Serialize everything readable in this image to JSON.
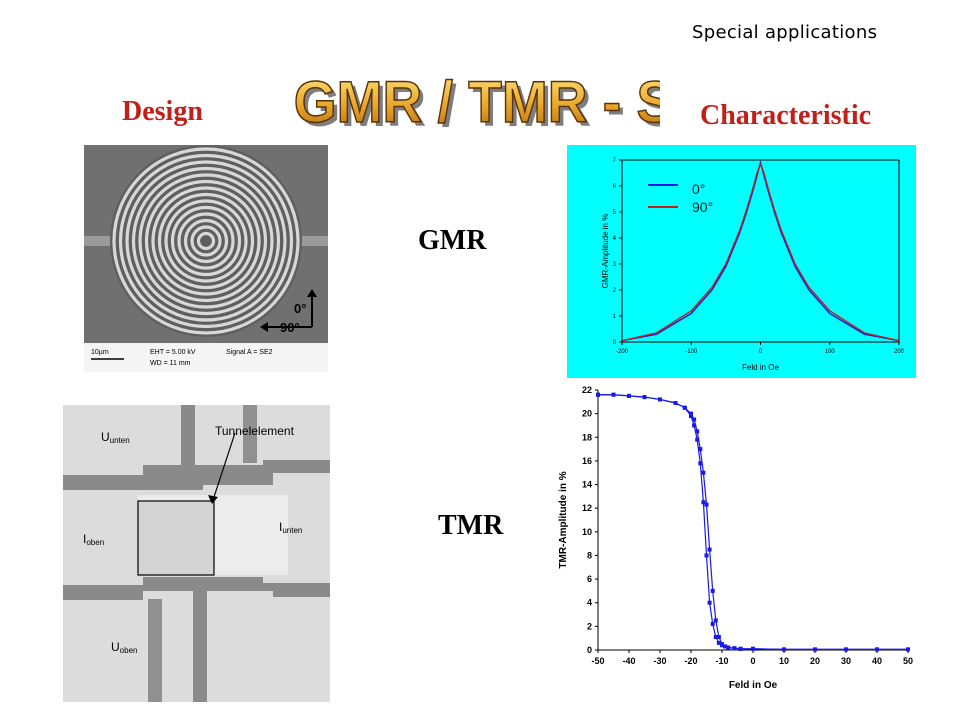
{
  "header": {
    "label": "Special applications"
  },
  "title": {
    "text": "GMR / TMR - Sensors"
  },
  "sections": {
    "design": "Design",
    "characteristic": "Characteristic"
  },
  "rows": {
    "gmr": "GMR",
    "tmr": "TMR"
  },
  "sem_spiral": {
    "angle_0": "0°",
    "angle_90": "90°",
    "scale_bar": "10µm",
    "eht": "EHT = 5.00 kV",
    "wd": "WD = 11 mm",
    "signal": "Signal A = SE2"
  },
  "sem_tunnel": {
    "u_unten_main": "U",
    "u_unten_sub": "unten",
    "tunnel": "Tunnelelement",
    "i_oben_main": "I",
    "i_oben_sub": "oben",
    "i_unten_main": "I",
    "i_unten_sub": "unten",
    "u_oben_main": "U",
    "u_oben_sub": "oben"
  },
  "chart_data": [
    {
      "type": "line",
      "xlabel": "Feld in Oe",
      "ylabel": "GMR-Amplitude in %",
      "xlim": [
        -200,
        200
      ],
      "ylim": [
        0,
        7
      ],
      "xticks": [
        "-200",
        "-100",
        "0",
        "100",
        "200"
      ],
      "yticks": [
        "0",
        "1",
        "2",
        "3",
        "4",
        "5",
        "6",
        "7"
      ],
      "grid": false,
      "legend": "top-left",
      "background": "#00ffff",
      "series": [
        {
          "name": "0°",
          "color": "#1a1ae6",
          "x": [
            -200,
            -150,
            -100,
            -70,
            -50,
            -30,
            -20,
            -10,
            -5,
            0,
            5,
            10,
            20,
            30,
            50,
            70,
            100,
            150,
            200
          ],
          "values": [
            0.05,
            0.3,
            1.1,
            2.0,
            2.9,
            4.2,
            5.0,
            5.9,
            6.4,
            6.9,
            6.4,
            5.9,
            5.0,
            4.2,
            2.9,
            2.0,
            1.1,
            0.3,
            0.05
          ]
        },
        {
          "name": "90°",
          "color": "#c0201a",
          "x": [
            -200,
            -150,
            -100,
            -70,
            -50,
            -30,
            -20,
            -10,
            -5,
            0,
            5,
            10,
            20,
            30,
            50,
            70,
            100,
            150,
            200
          ],
          "values": [
            0.05,
            0.35,
            1.2,
            2.1,
            3.0,
            4.3,
            5.1,
            6.0,
            6.5,
            6.85,
            6.5,
            6.0,
            5.1,
            4.3,
            3.0,
            2.1,
            1.2,
            0.35,
            0.05
          ]
        }
      ]
    },
    {
      "type": "line",
      "xlabel": "Feld in Oe",
      "ylabel": "TMR-Amplitude in %",
      "xlim": [
        -50,
        50
      ],
      "ylim": [
        0,
        22
      ],
      "xticks": [
        "-50",
        "-40",
        "-30",
        "-20",
        "-10",
        "0",
        "10",
        "20",
        "30",
        "40",
        "50"
      ],
      "yticks": [
        "0",
        "2",
        "4",
        "6",
        "8",
        "10",
        "12",
        "14",
        "16",
        "18",
        "20",
        "22"
      ],
      "grid": false,
      "series": [
        {
          "name": "",
          "color": "#1a1ae6",
          "x": [
            -50,
            -45,
            -40,
            -35,
            -30,
            -25,
            -22,
            -20,
            -19,
            -18,
            -17,
            -16,
            -15,
            -14,
            -13,
            -12,
            -11,
            -10,
            -9,
            -8,
            -6,
            -4,
            0,
            10,
            20,
            30,
            40,
            50
          ],
          "values": [
            21.6,
            21.6,
            21.5,
            21.4,
            21.2,
            20.9,
            20.5,
            19.8,
            19.0,
            17.8,
            15.8,
            12.5,
            8.0,
            4.0,
            2.2,
            1.1,
            0.6,
            0.4,
            0.3,
            0.2,
            0.15,
            0.1,
            0.1,
            0.05,
            0.05,
            0.05,
            0.05,
            0.05
          ]
        },
        {
          "name": "",
          "color": "#1a1ae6",
          "x": [
            -50,
            -45,
            -40,
            -35,
            -30,
            -25,
            -22,
            -20,
            -19,
            -18,
            -17,
            -16,
            -15,
            -14,
            -13,
            -12,
            -11,
            -10,
            -9,
            -8,
            -6,
            -4,
            0,
            10,
            20,
            30,
            40,
            50
          ],
          "values": [
            21.6,
            21.6,
            21.5,
            21.4,
            21.2,
            20.9,
            20.5,
            20.0,
            19.5,
            18.5,
            17.0,
            15.0,
            12.3,
            8.5,
            5.0,
            2.5,
            1.1,
            0.5,
            0.3,
            0.2,
            0.15,
            0.1,
            0.1,
            0.05,
            0.05,
            0.05,
            0.05,
            0.05
          ]
        }
      ]
    }
  ]
}
